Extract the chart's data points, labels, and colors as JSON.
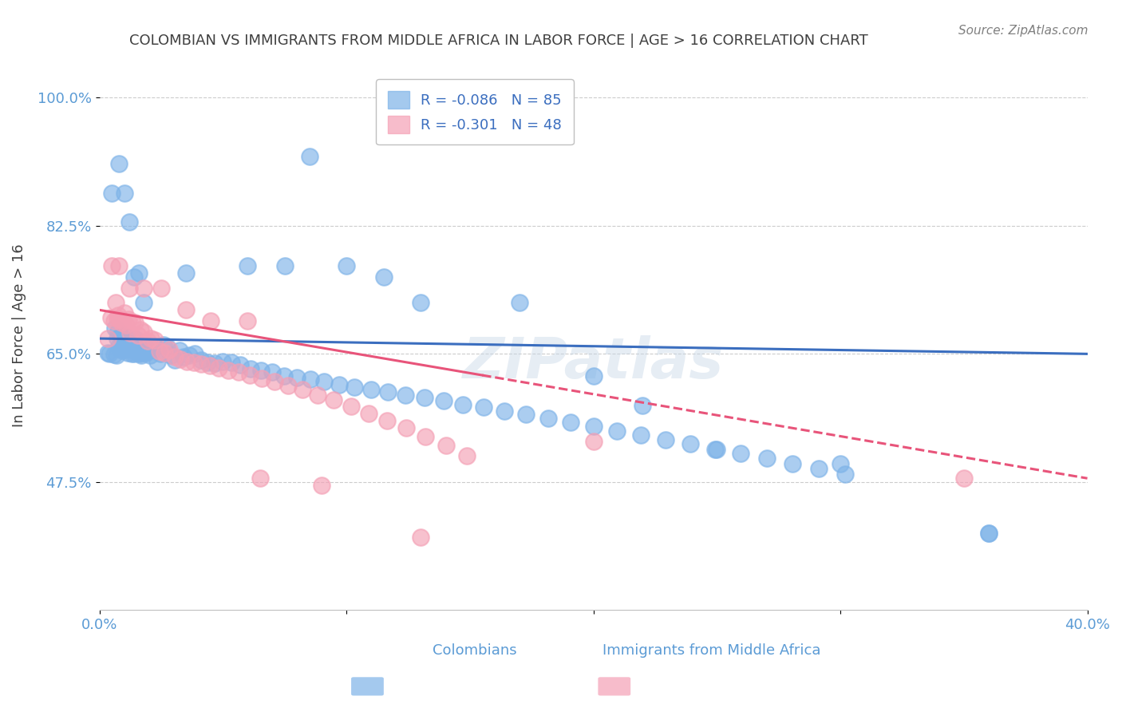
{
  "title": "COLOMBIAN VS IMMIGRANTS FROM MIDDLE AFRICA IN LABOR FORCE | AGE > 16 CORRELATION CHART",
  "source": "Source: ZipAtlas.com",
  "xlabel": "",
  "ylabel": "In Labor Force | Age > 16",
  "xlim": [
    0.0,
    0.4
  ],
  "ylim": [
    0.3,
    1.05
  ],
  "yticks": [
    0.475,
    0.65,
    0.825,
    1.0
  ],
  "ytick_labels": [
    "47.5%",
    "65.0%",
    "82.5%",
    "100.0%"
  ],
  "xticks": [
    0.0,
    0.1,
    0.2,
    0.3,
    0.4
  ],
  "xtick_labels": [
    "0.0%",
    "",
    "",
    "",
    "40.0%"
  ],
  "blue_R": -0.086,
  "blue_N": 85,
  "pink_R": -0.301,
  "pink_N": 48,
  "blue_color": "#7EB3E8",
  "pink_color": "#F4A0B5",
  "blue_line_color": "#3B6EBF",
  "pink_line_color": "#E8547A",
  "title_color": "#404040",
  "axis_color": "#5B9BD5",
  "watermark": "ZIPatlas",
  "blue_x": [
    0.0032,
    0.0041,
    0.0058,
    0.0064,
    0.0068,
    0.0071,
    0.0075,
    0.008,
    0.0084,
    0.0088,
    0.0091,
    0.0094,
    0.0098,
    0.0102,
    0.0105,
    0.0108,
    0.0111,
    0.0115,
    0.0119,
    0.0122,
    0.0126,
    0.0131,
    0.0135,
    0.0139,
    0.0143,
    0.0148,
    0.0153,
    0.0158,
    0.0163,
    0.0169,
    0.0175,
    0.0182,
    0.0189,
    0.0197,
    0.0205,
    0.0214,
    0.0224,
    0.0235,
    0.0247,
    0.026,
    0.0274,
    0.0289,
    0.0305,
    0.0323,
    0.0342,
    0.0362,
    0.0385,
    0.041,
    0.0437,
    0.0467,
    0.0499,
    0.0534,
    0.0571,
    0.0611,
    0.0654,
    0.07,
    0.0748,
    0.0799,
    0.0853,
    0.091,
    0.097,
    0.1033,
    0.1099,
    0.1168,
    0.124,
    0.1315,
    0.1393,
    0.1473,
    0.1556,
    0.1641,
    0.1728,
    0.1817,
    0.1908,
    0.2001,
    0.2096,
    0.2193,
    0.2292,
    0.2392,
    0.2494,
    0.2597,
    0.2701,
    0.2806,
    0.2912,
    0.3019,
    0.36
  ],
  "blue_y": [
    0.651,
    0.65,
    0.649,
    0.685,
    0.648,
    0.671,
    0.681,
    0.66,
    0.657,
    0.674,
    0.655,
    0.663,
    0.668,
    0.66,
    0.657,
    0.673,
    0.658,
    0.651,
    0.665,
    0.663,
    0.656,
    0.65,
    0.663,
    0.65,
    0.659,
    0.67,
    0.651,
    0.664,
    0.65,
    0.648,
    0.652,
    0.66,
    0.652,
    0.655,
    0.648,
    0.657,
    0.66,
    0.64,
    0.65,
    0.662,
    0.66,
    0.648,
    0.642,
    0.655,
    0.646,
    0.648,
    0.65,
    0.642,
    0.638,
    0.637,
    0.64,
    0.638,
    0.635,
    0.63,
    0.628,
    0.625,
    0.62,
    0.618,
    0.615,
    0.612,
    0.608,
    0.605,
    0.601,
    0.598,
    0.594,
    0.59,
    0.586,
    0.581,
    0.577,
    0.572,
    0.567,
    0.562,
    0.557,
    0.551,
    0.545,
    0.539,
    0.533,
    0.527,
    0.52,
    0.514,
    0.507,
    0.5,
    0.493,
    0.486,
    0.405
  ],
  "pink_x": [
    0.0035,
    0.0048,
    0.0058,
    0.0066,
    0.0072,
    0.0077,
    0.0082,
    0.0088,
    0.0094,
    0.0101,
    0.0108,
    0.0116,
    0.0125,
    0.0134,
    0.0144,
    0.0155,
    0.0167,
    0.018,
    0.0194,
    0.0209,
    0.0225,
    0.0243,
    0.0262,
    0.0282,
    0.0304,
    0.0328,
    0.0354,
    0.0382,
    0.0413,
    0.0446,
    0.0482,
    0.0521,
    0.0563,
    0.0608,
    0.0657,
    0.0709,
    0.0764,
    0.0822,
    0.0884,
    0.0949,
    0.1018,
    0.1089,
    0.1164,
    0.1241,
    0.1321,
    0.1404,
    0.1489,
    0.35
  ],
  "pink_y": [
    0.671,
    0.7,
    0.695,
    0.72,
    0.698,
    0.703,
    0.697,
    0.693,
    0.695,
    0.706,
    0.69,
    0.697,
    0.679,
    0.693,
    0.693,
    0.675,
    0.683,
    0.68,
    0.668,
    0.671,
    0.669,
    0.654,
    0.651,
    0.656,
    0.646,
    0.643,
    0.64,
    0.638,
    0.636,
    0.634,
    0.631,
    0.628,
    0.625,
    0.621,
    0.617,
    0.612,
    0.607,
    0.601,
    0.594,
    0.587,
    0.578,
    0.569,
    0.559,
    0.549,
    0.537,
    0.525,
    0.511,
    0.48
  ],
  "extra_blue_points_x": [
    0.005,
    0.008,
    0.01,
    0.012,
    0.014,
    0.016,
    0.018,
    0.035,
    0.06,
    0.075,
    0.085,
    0.1,
    0.115,
    0.13,
    0.17,
    0.2,
    0.22,
    0.25,
    0.3,
    0.36
  ],
  "extra_blue_points_y": [
    0.87,
    0.91,
    0.87,
    0.83,
    0.755,
    0.76,
    0.72,
    0.76,
    0.77,
    0.77,
    0.92,
    0.77,
    0.755,
    0.72,
    0.72,
    0.62,
    0.58,
    0.52,
    0.5,
    0.405
  ],
  "extra_pink_points_x": [
    0.005,
    0.008,
    0.012,
    0.018,
    0.025,
    0.035,
    0.045,
    0.06,
    0.065,
    0.09,
    0.13,
    0.2
  ],
  "extra_pink_points_y": [
    0.77,
    0.77,
    0.74,
    0.74,
    0.74,
    0.71,
    0.695,
    0.695,
    0.48,
    0.47,
    0.4,
    0.53
  ]
}
